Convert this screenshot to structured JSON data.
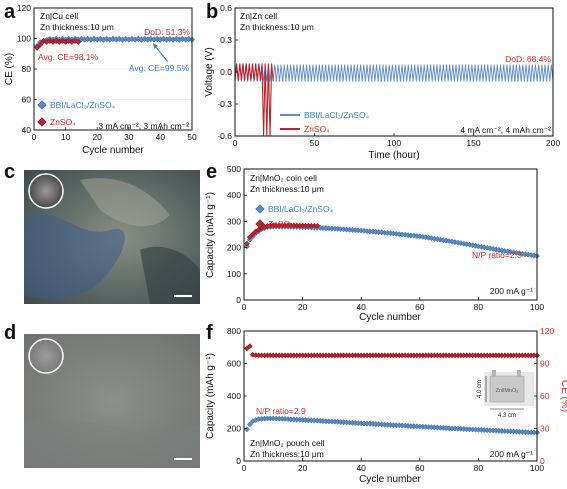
{
  "colors": {
    "blue": "#5b8cc7",
    "blue_edge": "#2d5e96",
    "red": "#b8242f",
    "red_edge": "#7a1018",
    "annot_red": "#d62728",
    "annot_blue": "#3b7fc4"
  },
  "panel_labels": [
    "a",
    "b",
    "c",
    "d",
    "e",
    "f"
  ],
  "chart_data": [
    {
      "id": "a",
      "type": "scatter",
      "xlabel": "Cycle number",
      "ylabel": "CE (%)",
      "xlim": [
        0,
        50
      ],
      "ylim": [
        40,
        120
      ],
      "xticks": [
        0,
        10,
        20,
        30,
        40,
        50
      ],
      "yticks": [
        40,
        60,
        80,
        100,
        120
      ],
      "title_lines": [
        "Zn|Cu cell",
        "Zn thickness:10 μm"
      ],
      "annotations": {
        "dod": "DoD: 51.3%",
        "avg_ce_red": "Avg. CE=98.1%",
        "avg_ce_blue": "Avg. CE=99.5%",
        "conditions": "3 mA cm⁻², 3 mAh cm⁻²"
      },
      "series": [
        {
          "name": "BBI/LaCl₃/ZnSO₄",
          "x_range": [
            1,
            50
          ],
          "start_values": [
            95,
            97.5,
            98.5,
            99
          ],
          "plateau": 99.5
        },
        {
          "name": "ZnSO₄",
          "x_range": [
            1,
            14
          ],
          "start_values": [
            94,
            96
          ],
          "plateau": 98.1
        }
      ]
    },
    {
      "id": "b",
      "type": "line",
      "xlabel": "Time (hour)",
      "ylabel": "Voltage (V)",
      "xlim": [
        0,
        200
      ],
      "ylim": [
        -0.6,
        0.6
      ],
      "xticks": [
        0,
        50,
        100,
        150,
        200
      ],
      "yticks": [
        -0.6,
        -0.3,
        0.0,
        0.3,
        0.6
      ],
      "ytick_labels": [
        "-0.6",
        "-0.3",
        "0.0",
        "0.3",
        "0.6"
      ],
      "title_lines": [
        "Zn|Zn cell",
        "Zn thickness:10 μm"
      ],
      "annotations": {
        "dod": "DoD: 68.4%",
        "conditions": "4 mA cm⁻², 4 mAh cm⁻²"
      },
      "series": [
        {
          "name": "BBI/LaCl₃/ZnSO₄",
          "cycle_hours": 2,
          "amplitude": [
            -0.09,
            0.07
          ],
          "end": 200
        },
        {
          "name": "ZnSO₄",
          "cycle_hours": 2,
          "amplitude": [
            -0.08,
            0.08
          ],
          "end": 24,
          "failure_hours": [
            18,
            20,
            22
          ]
        }
      ]
    },
    {
      "id": "e",
      "type": "scatter",
      "xlabel": "Cycle number",
      "ylabel": "Capacity (mAh g⁻¹)",
      "xlim": [
        0,
        100
      ],
      "ylim": [
        0,
        500
      ],
      "xticks": [
        0,
        20,
        40,
        60,
        80,
        100
      ],
      "yticks": [
        0,
        100,
        200,
        300,
        400,
        500
      ],
      "title_lines": [
        "Zn|MnO₂ coin cell",
        "Zn thickness:10 μm"
      ],
      "annotations": {
        "np": "N/P ratio=2.3",
        "conditions": "200 mA g⁻¹"
      },
      "series": [
        {
          "name": "BBI/LaCl₃/ZnSO₄",
          "x": [
            1,
            2,
            4,
            6,
            8,
            10,
            15,
            20,
            25,
            30,
            40,
            50,
            60,
            70,
            80,
            90,
            100
          ],
          "values": [
            205,
            230,
            255,
            270,
            278,
            280,
            280,
            278,
            276,
            273,
            265,
            255,
            243,
            225,
            205,
            185,
            168
          ]
        },
        {
          "name": "ZnSO₄",
          "x": [
            1,
            2,
            4,
            6,
            8,
            10,
            15,
            20,
            25
          ],
          "values": [
            215,
            240,
            262,
            275,
            283,
            285,
            285,
            284,
            283
          ]
        }
      ]
    },
    {
      "id": "f",
      "type": "scatter",
      "xlabel": "Cycle number",
      "ylabel": "Capacity (mAh g⁻¹)",
      "y2label": "CE (%)",
      "xlim": [
        0,
        100
      ],
      "ylim": [
        0,
        800
      ],
      "y2lim": [
        0,
        120
      ],
      "xticks": [
        0,
        20,
        40,
        60,
        80,
        100
      ],
      "yticks": [
        0,
        200,
        400,
        600,
        800
      ],
      "y2ticks": [
        0,
        30,
        60,
        90,
        120
      ],
      "title_lines": [
        "Zn|MnO₂ pouch cell",
        "Zn thickness:10 μm"
      ],
      "annotations": {
        "np": "N/P ratio=2.9",
        "conditions": "200 mA g⁻¹"
      },
      "inset": {
        "label": "Zn‖MnO₂",
        "width_label": "4.3 cm",
        "height_label": "4.0 cm"
      },
      "series": [
        {
          "name": "Capacity",
          "x": [
            1,
            2,
            3,
            5,
            8,
            10,
            15,
            20,
            30,
            40,
            50,
            60,
            70,
            80,
            90,
            100
          ],
          "values": [
            195,
            225,
            245,
            258,
            262,
            262,
            258,
            253,
            243,
            232,
            222,
            212,
            202,
            192,
            183,
            175
          ]
        },
        {
          "name": "CE",
          "axis": "right",
          "x": [
            1,
            2,
            3,
            5,
            100
          ],
          "values": [
            104,
            106,
            98,
            97.5,
            97.5
          ]
        }
      ]
    }
  ]
}
